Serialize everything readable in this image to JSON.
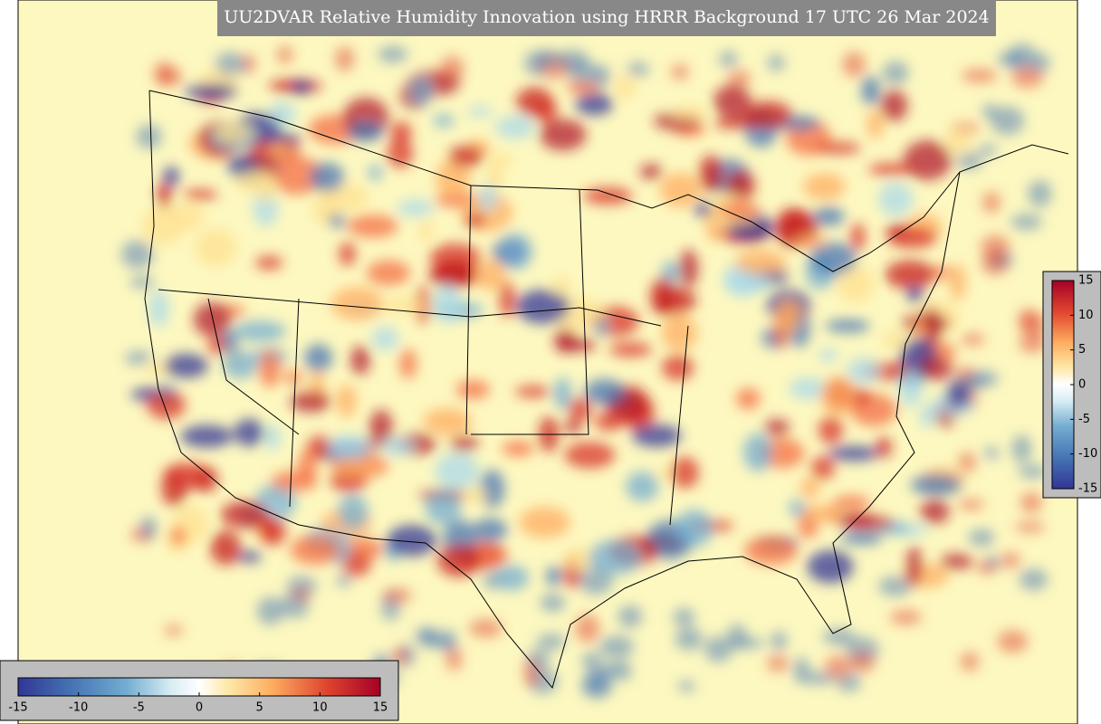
{
  "title": "UU2DVAR Relative Humidity Innovation using HRRR Background 17 UTC 26 Mar 2024",
  "colorbar_vertical": {
    "ticks": [
      15,
      10,
      5,
      0,
      -5,
      -10,
      -15
    ]
  },
  "colorbar_horizontal": {
    "ticks": [
      -15,
      -10,
      -5,
      0,
      5,
      10,
      15
    ]
  }
}
